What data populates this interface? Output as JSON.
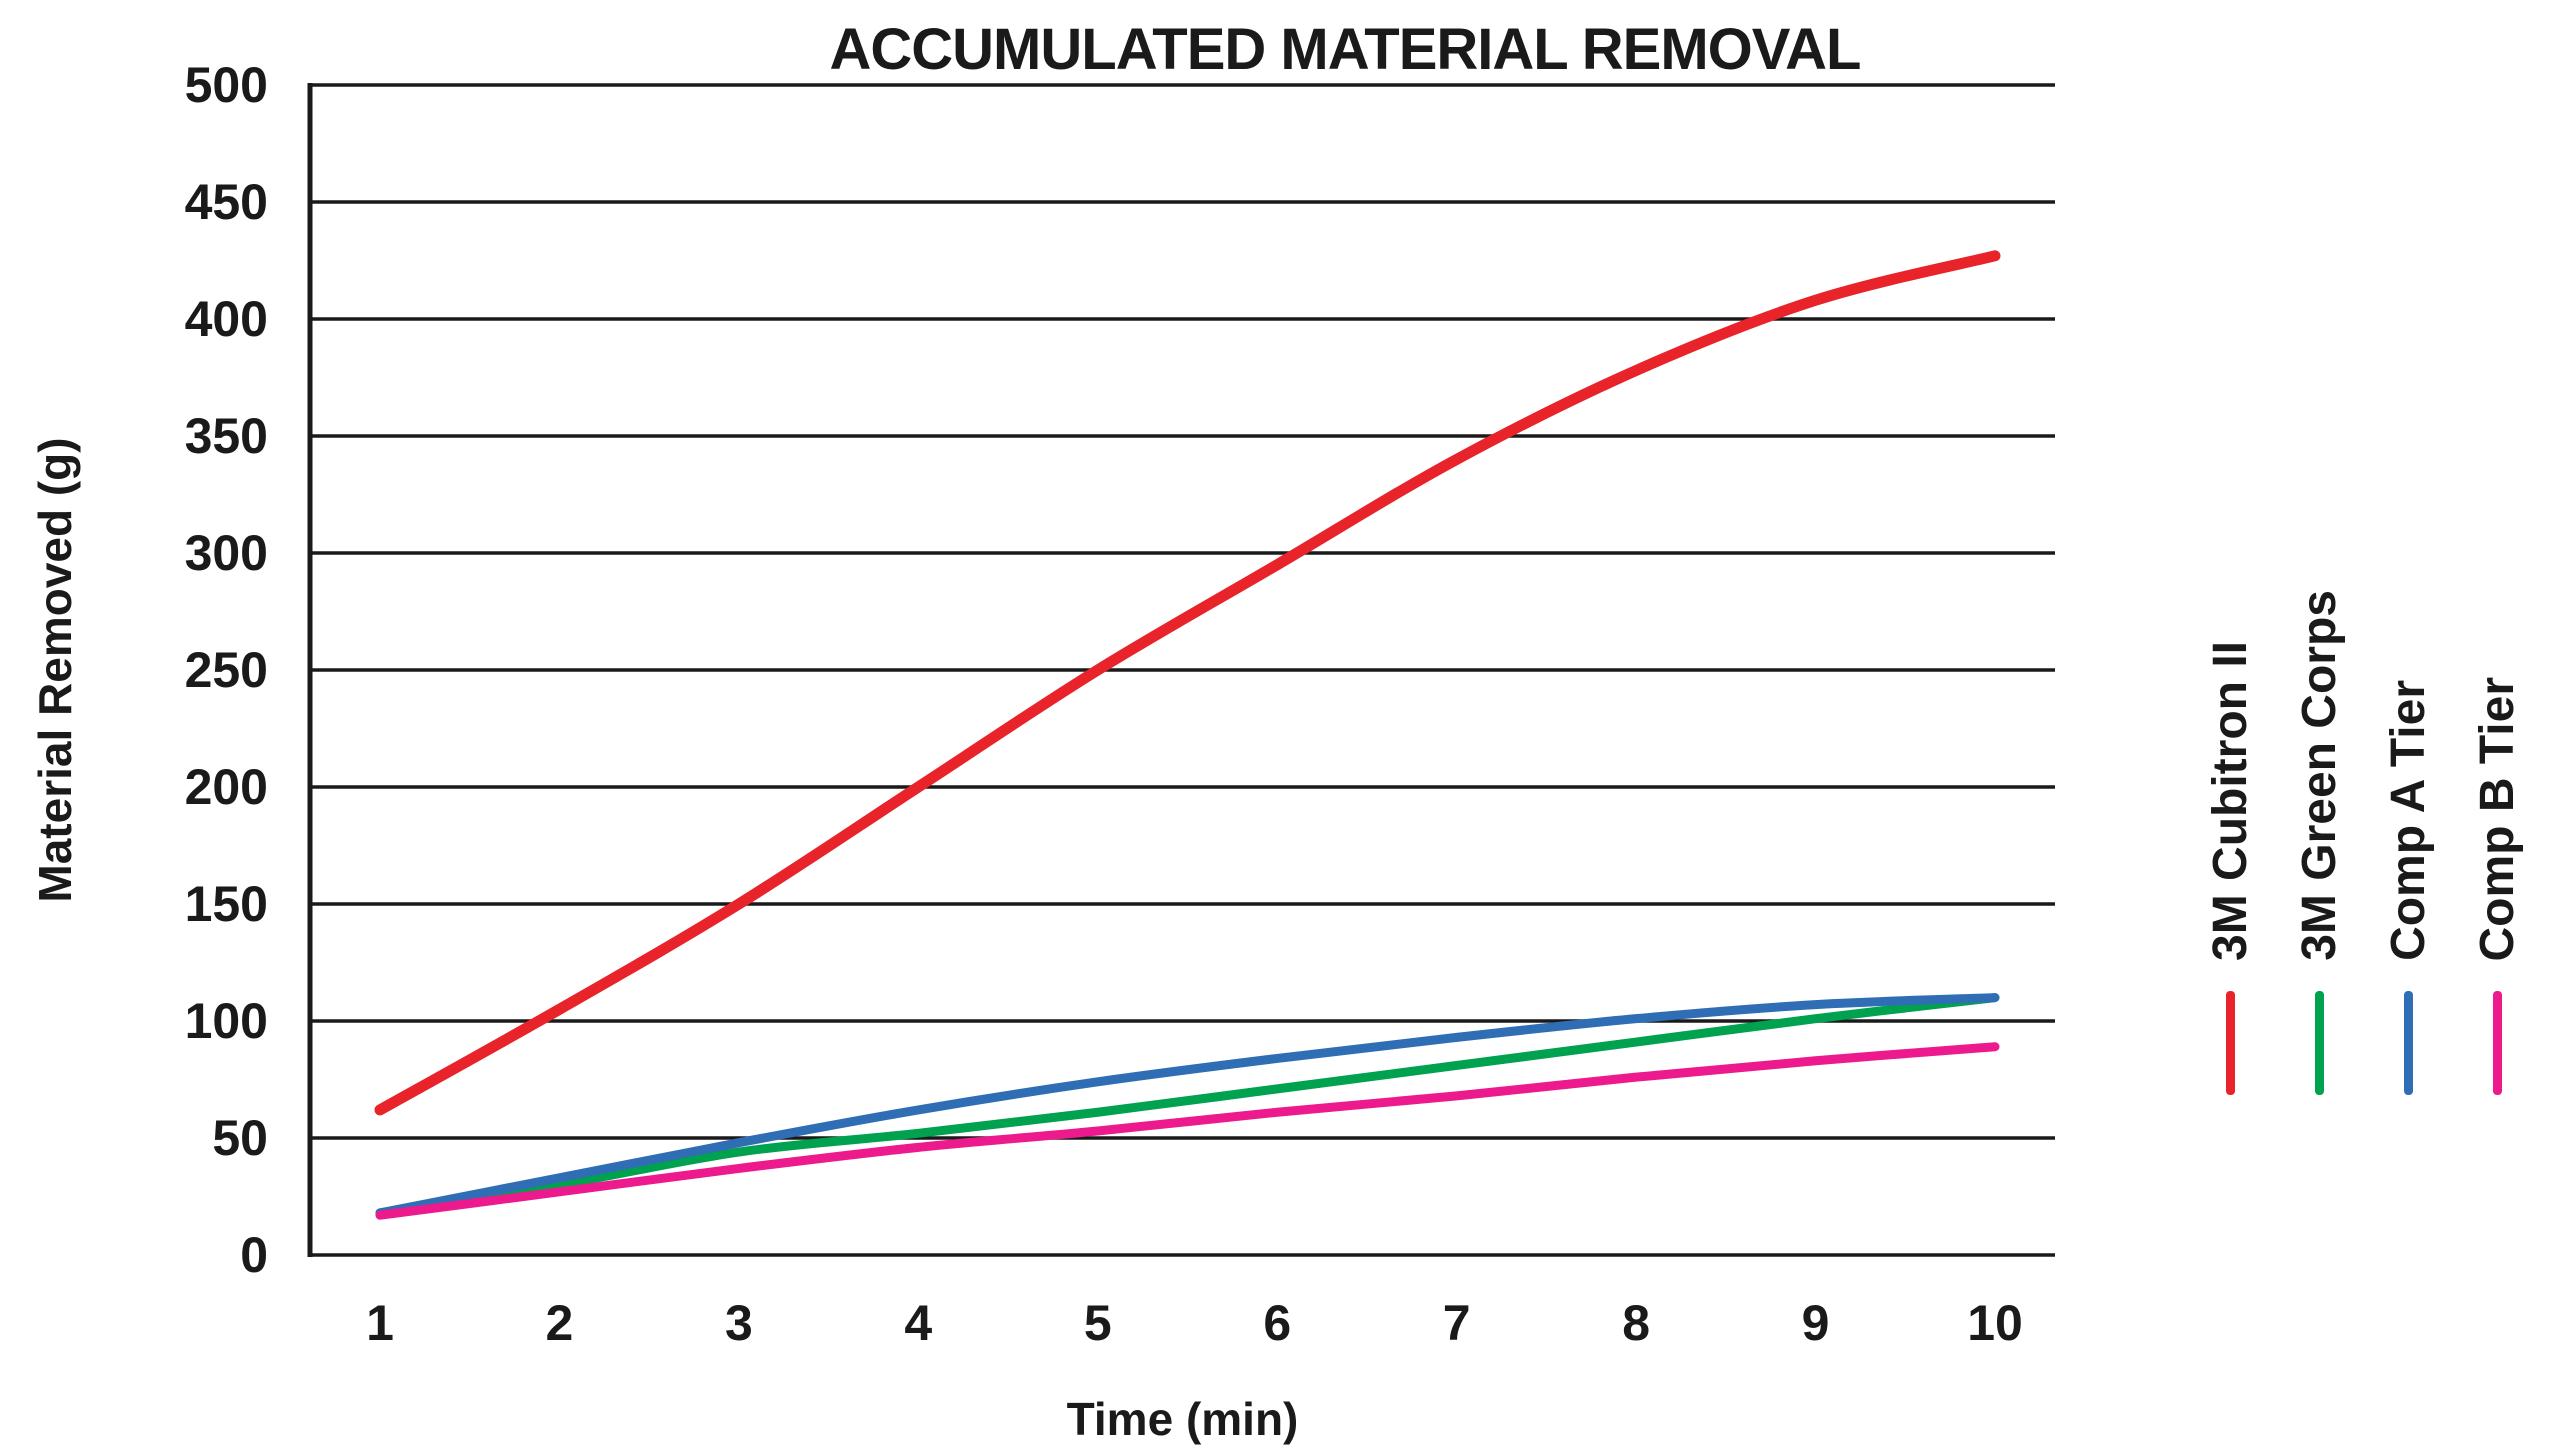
{
  "chart_data": {
    "type": "line",
    "title": "ACCUMULATED MATERIAL REMOVAL",
    "xlabel": "Time (min)",
    "ylabel": "Material Removed (g)",
    "x": [
      1,
      2,
      3,
      4,
      5,
      6,
      7,
      8,
      9,
      10
    ],
    "xticks": [
      1,
      2,
      3,
      4,
      5,
      6,
      7,
      8,
      9,
      10
    ],
    "yticks": [
      0,
      50,
      100,
      150,
      200,
      250,
      300,
      350,
      400,
      450,
      500
    ],
    "xlim": [
      1,
      10
    ],
    "ylim": [
      0,
      500
    ],
    "grid": "horizontal",
    "legend_position": "right-vertical",
    "colors": {
      "axis": "#1a1a1a",
      "gridline": "#1a1a1a",
      "background": "#ffffff"
    },
    "series": [
      {
        "name": "3M Cubitron II",
        "color": "#e8232a",
        "values": [
          62,
          105,
          150,
          200,
          250,
          295,
          340,
          378,
          408,
          427
        ]
      },
      {
        "name": "3M Green Corps",
        "color": "#00a14f",
        "values": [
          18,
          30,
          44,
          52,
          61,
          71,
          81,
          91,
          101,
          110
        ]
      },
      {
        "name": "Comp A Tier",
        "color": "#2f6eb5",
        "values": [
          18,
          33,
          48,
          62,
          74,
          84,
          93,
          101,
          107,
          110
        ]
      },
      {
        "name": "Comp B Tier",
        "color": "#ec1a8d",
        "values": [
          17,
          27,
          37,
          46,
          53,
          61,
          68,
          76,
          83,
          89
        ]
      }
    ]
  }
}
